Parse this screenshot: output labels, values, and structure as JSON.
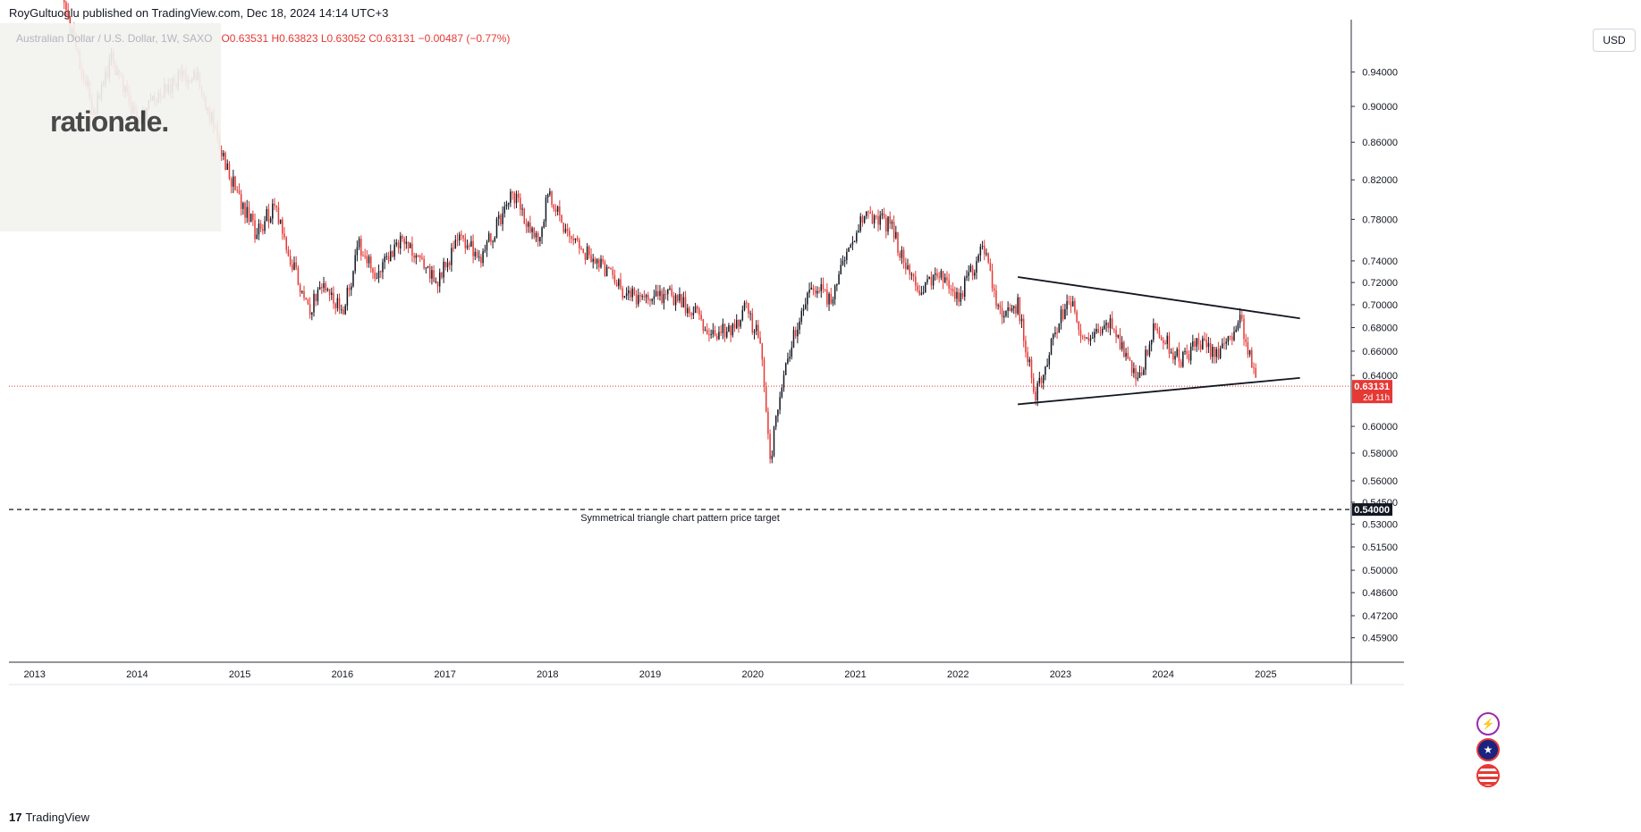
{
  "publish_line": "RoyGultuoglu published on TradingView.com, Dec 18, 2024 14:14 UTC+3",
  "legend": {
    "symbol_line": "Australian Dollar / U.S. Dollar, 1W, SAXO",
    "ohlc_line": "O0.63531  H0.63823  L0.63052  C0.63131  −0.00487 (−0.77%)"
  },
  "watermark_logo": "rationale.",
  "currency_button": "USD",
  "footer_brand": "TradingView",
  "footer_mark": "17",
  "colors": {
    "up": "#131722",
    "down": "#e53935",
    "price_line": "#e53935",
    "target_label_bg": "#131722",
    "price_label_bg": "#e53935"
  },
  "chart_data": {
    "type": "candlestick",
    "title": "Australian Dollar / U.S. Dollar, 1W, SAXO",
    "x_axis_labels": [
      "2013",
      "2014",
      "2015",
      "2016",
      "2017",
      "2018",
      "2019",
      "2020",
      "2021",
      "2022",
      "2023",
      "2024",
      "2025"
    ],
    "y_axis_ticks": [
      "0.94000",
      "0.90000",
      "0.86000",
      "0.82000",
      "0.78000",
      "0.74000",
      "0.72000",
      "0.70000",
      "0.68000",
      "0.66000",
      "0.64000",
      "0.60000",
      "0.58000",
      "0.56000",
      "0.54500",
      "0.53000",
      "0.51500",
      "0.50000",
      "0.48600",
      "0.47200",
      "0.45900"
    ],
    "ylim": [
      0.445,
      1.0
    ],
    "y_scale": "log",
    "current_price": {
      "value": 0.63131,
      "label": "0.63131",
      "countdown": "2d 11h"
    },
    "price_target": {
      "value": 0.54,
      "label": "0.54000",
      "annotation": "Symmetrical triangle chart pattern price target"
    },
    "triangle": {
      "upper_line": [
        {
          "date": "2022-08",
          "price": 0.725
        },
        {
          "date": "2025-05",
          "price": 0.688
        }
      ],
      "lower_line": [
        {
          "date": "2022-08",
          "price": 0.617
        },
        {
          "date": "2025-05",
          "price": 0.638
        }
      ]
    },
    "price_path": [
      {
        "date": "2013-04",
        "price": 1.04
      },
      {
        "date": "2013-06",
        "price": 0.96
      },
      {
        "date": "2013-08",
        "price": 0.895
      },
      {
        "date": "2013-10",
        "price": 0.955
      },
      {
        "date": "2014-01",
        "price": 0.885
      },
      {
        "date": "2014-03",
        "price": 0.905
      },
      {
        "date": "2014-06",
        "price": 0.935
      },
      {
        "date": "2014-08",
        "price": 0.94
      },
      {
        "date": "2014-10",
        "price": 0.875
      },
      {
        "date": "2014-12",
        "price": 0.82
      },
      {
        "date": "2015-03",
        "price": 0.765
      },
      {
        "date": "2015-05",
        "price": 0.795
      },
      {
        "date": "2015-07",
        "price": 0.74
      },
      {
        "date": "2015-09",
        "price": 0.695
      },
      {
        "date": "2015-11",
        "price": 0.72
      },
      {
        "date": "2016-01",
        "price": 0.69
      },
      {
        "date": "2016-03",
        "price": 0.755
      },
      {
        "date": "2016-05",
        "price": 0.725
      },
      {
        "date": "2016-08",
        "price": 0.765
      },
      {
        "date": "2016-12",
        "price": 0.72
      },
      {
        "date": "2017-03",
        "price": 0.765
      },
      {
        "date": "2017-05",
        "price": 0.74
      },
      {
        "date": "2017-09",
        "price": 0.805
      },
      {
        "date": "2017-12",
        "price": 0.755
      },
      {
        "date": "2018-01",
        "price": 0.81
      },
      {
        "date": "2018-04",
        "price": 0.755
      },
      {
        "date": "2018-07",
        "price": 0.74
      },
      {
        "date": "2018-10",
        "price": 0.71
      },
      {
        "date": "2018-12",
        "price": 0.705
      },
      {
        "date": "2019-03",
        "price": 0.71
      },
      {
        "date": "2019-06",
        "price": 0.695
      },
      {
        "date": "2019-08",
        "price": 0.675
      },
      {
        "date": "2019-11",
        "price": 0.68
      },
      {
        "date": "2019-12",
        "price": 0.7
      },
      {
        "date": "2020-02",
        "price": 0.665
      },
      {
        "date": "2020-03",
        "price": 0.575
      },
      {
        "date": "2020-05",
        "price": 0.655
      },
      {
        "date": "2020-08",
        "price": 0.72
      },
      {
        "date": "2020-10",
        "price": 0.705
      },
      {
        "date": "2021-02",
        "price": 0.785
      },
      {
        "date": "2021-05",
        "price": 0.775
      },
      {
        "date": "2021-08",
        "price": 0.715
      },
      {
        "date": "2021-11",
        "price": 0.725
      },
      {
        "date": "2022-01",
        "price": 0.705
      },
      {
        "date": "2022-04",
        "price": 0.755
      },
      {
        "date": "2022-06",
        "price": 0.69
      },
      {
        "date": "2022-08",
        "price": 0.7
      },
      {
        "date": "2022-10",
        "price": 0.625
      },
      {
        "date": "2023-02",
        "price": 0.71
      },
      {
        "date": "2023-04",
        "price": 0.665
      },
      {
        "date": "2023-07",
        "price": 0.685
      },
      {
        "date": "2023-10",
        "price": 0.632
      },
      {
        "date": "2023-12",
        "price": 0.68
      },
      {
        "date": "2024-03",
        "price": 0.652
      },
      {
        "date": "2024-05",
        "price": 0.665
      },
      {
        "date": "2024-08",
        "price": 0.66
      },
      {
        "date": "2024-10",
        "price": 0.69
      },
      {
        "date": "2024-12",
        "price": 0.631
      }
    ],
    "x_range": [
      "2012-10",
      "2025-11"
    ]
  },
  "event_icons": [
    "lightning-icon",
    "australia-flag-icon",
    "us-flag-icon"
  ]
}
